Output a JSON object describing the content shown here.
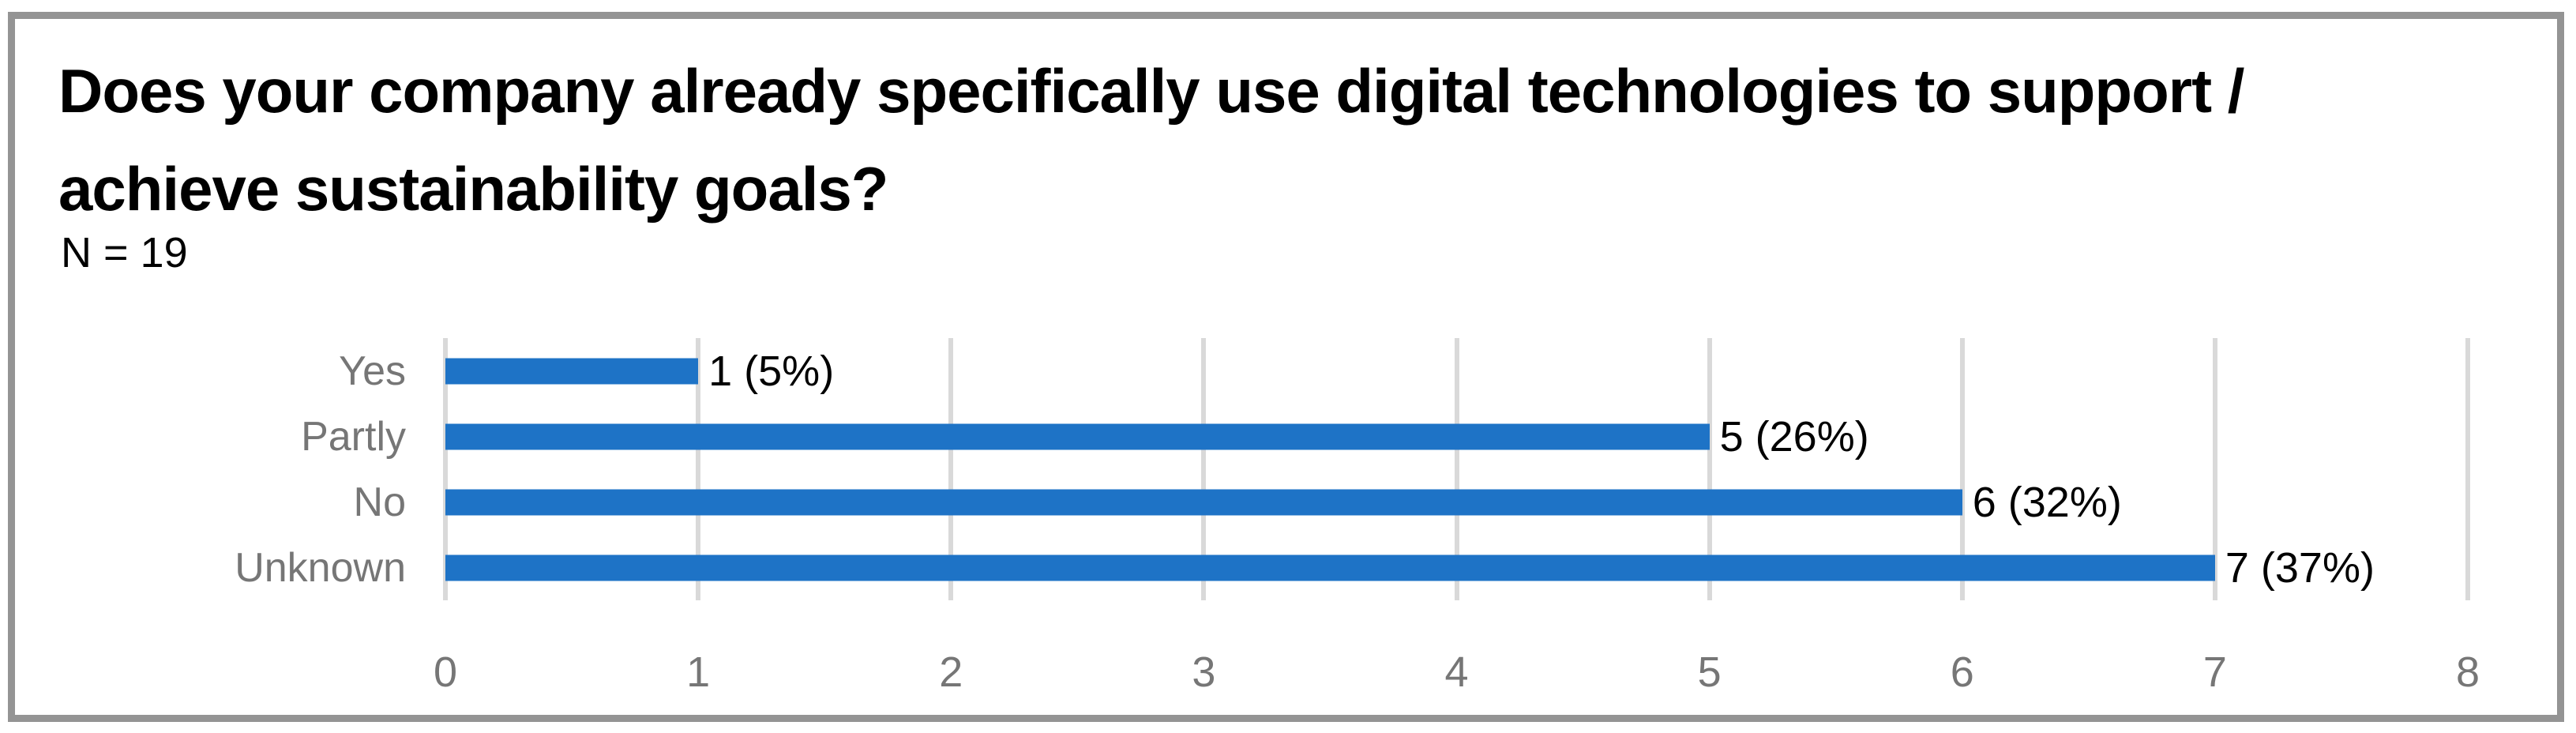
{
  "figure": {
    "title": "Does your company already specifically use digital technologies to support / achieve sustainability goals?",
    "title_lines": [
      "Does your company already specifically use digital technologies to support /",
      "achieve sustainability goals?"
    ],
    "sample_size_label": "N = 19"
  },
  "chart_data": {
    "type": "bar",
    "orientation": "horizontal",
    "title": "Does your company already specifically use digital technologies to support / achieve sustainability goals?",
    "subtitle": "N = 19",
    "sample_size": 19,
    "categories": [
      "Yes",
      "Partly",
      "No",
      "Unknown"
    ],
    "values": [
      1,
      5,
      6,
      7
    ],
    "percentages": [
      5,
      26,
      32,
      37
    ],
    "data_labels": [
      "1 (5%)",
      "5 (26%)",
      "6 (32%)",
      "7 (37%)"
    ],
    "xlabel": "",
    "ylabel": "",
    "xlim": [
      0,
      8
    ],
    "x_ticks": [
      0,
      1,
      2,
      3,
      4,
      5,
      6,
      7,
      8
    ],
    "grid": "vertical",
    "legend": "none",
    "bar_color": "#1E73C6",
    "gridline_color": "#D9D9D9",
    "axis_text_color": "#767676",
    "data_label_color": "#000000",
    "title_color": "#000000",
    "frame_border_color": "#949494"
  }
}
